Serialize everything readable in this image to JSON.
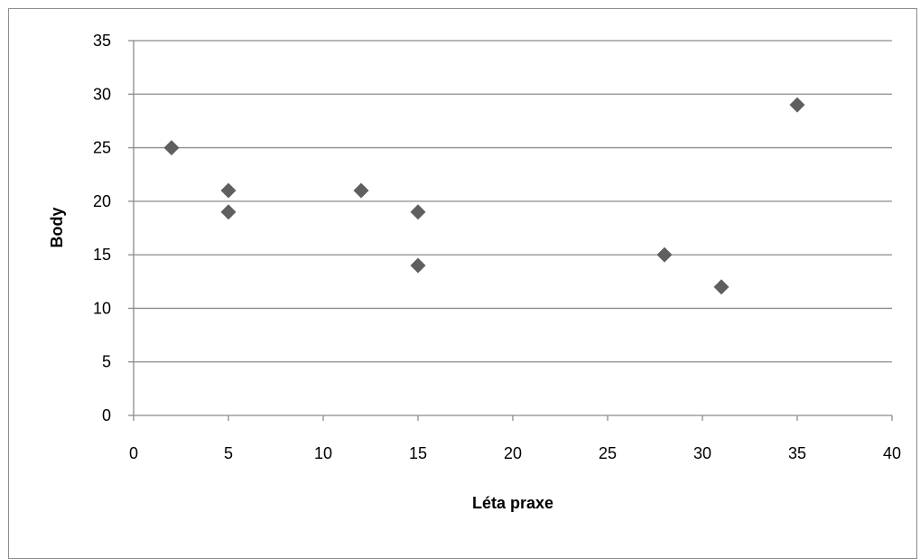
{
  "chart_data": {
    "type": "scatter",
    "title": "",
    "xlabel": "Léta praxe",
    "ylabel": "Body",
    "xlim": [
      0,
      40
    ],
    "ylim": [
      0,
      35
    ],
    "xticks": [
      0,
      5,
      10,
      15,
      20,
      25,
      30,
      35,
      40
    ],
    "yticks": [
      0,
      5,
      10,
      15,
      20,
      25,
      30,
      35
    ],
    "grid": "horizontal",
    "legend": "none",
    "marker": "diamond",
    "colors": {
      "marker": "#5f5f5f",
      "grid": "#8c8c8c",
      "axis": "#8c8c8c",
      "frame": "#8c8c8c"
    },
    "points": [
      {
        "x": 2,
        "y": 25
      },
      {
        "x": 5,
        "y": 21
      },
      {
        "x": 5,
        "y": 19
      },
      {
        "x": 12,
        "y": 21
      },
      {
        "x": 15,
        "y": 19
      },
      {
        "x": 15,
        "y": 14
      },
      {
        "x": 28,
        "y": 15
      },
      {
        "x": 31,
        "y": 12
      },
      {
        "x": 35,
        "y": 29
      }
    ]
  }
}
